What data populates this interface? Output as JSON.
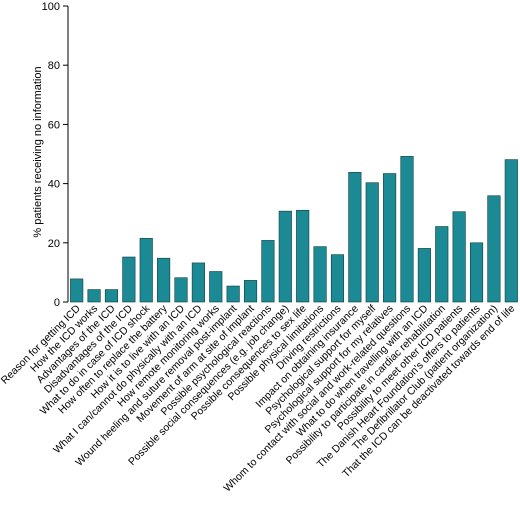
{
  "chart_data": {
    "type": "bar",
    "title": "",
    "xlabel": "",
    "ylabel": "% patients receiving no information",
    "ylim": [
      0,
      100
    ],
    "yticks": [
      0,
      20,
      40,
      60,
      80,
      100
    ],
    "grid": false,
    "legend": "none",
    "bar_color": "#1b8a94",
    "bar_edge_color": "#0d3c40",
    "categories": [
      "Reason for getting ICD",
      "How the ICD works",
      "Advantages of the ICD",
      "Disadvantages of the ICD",
      "What to do in case of ICD shock",
      "How often to replace the battery",
      "How it is to live with an ICD",
      "What I can/cannot do physically with an ICD",
      "How remote monitoring works",
      "Wound heeling and suture removal post-implant",
      "Movement of arm at site of implant",
      "Possible psychological reactions",
      "Possible social consequences (e.g. job change)",
      "Possible consequences to sex life",
      "Possible physical limitations",
      "Driving restrictions",
      "Impact on obtaining insurance",
      "Psychological support for myself",
      "Psychological support for my relatives",
      "Whom to contact with social and work-related questions",
      "What to do when travelling with an ICD",
      "Possibility to participate in cardiac rehabilitation",
      "Possibility to meet other ICD patients",
      "The Danish Heart Foundation's offers to patients",
      "The Defibrillator Club (patient organization)",
      "That the ICD can be deactivated towards end of life"
    ],
    "values": [
      7.8,
      4.2,
      4.2,
      15.2,
      21.5,
      14.8,
      8.2,
      13.2,
      10.3,
      5.4,
      7.3,
      20.8,
      30.7,
      31.0,
      18.7,
      16.0,
      43.8,
      40.3,
      43.4,
      49.2,
      18.1,
      25.5,
      30.5,
      20.0,
      35.9,
      48.1
    ]
  }
}
